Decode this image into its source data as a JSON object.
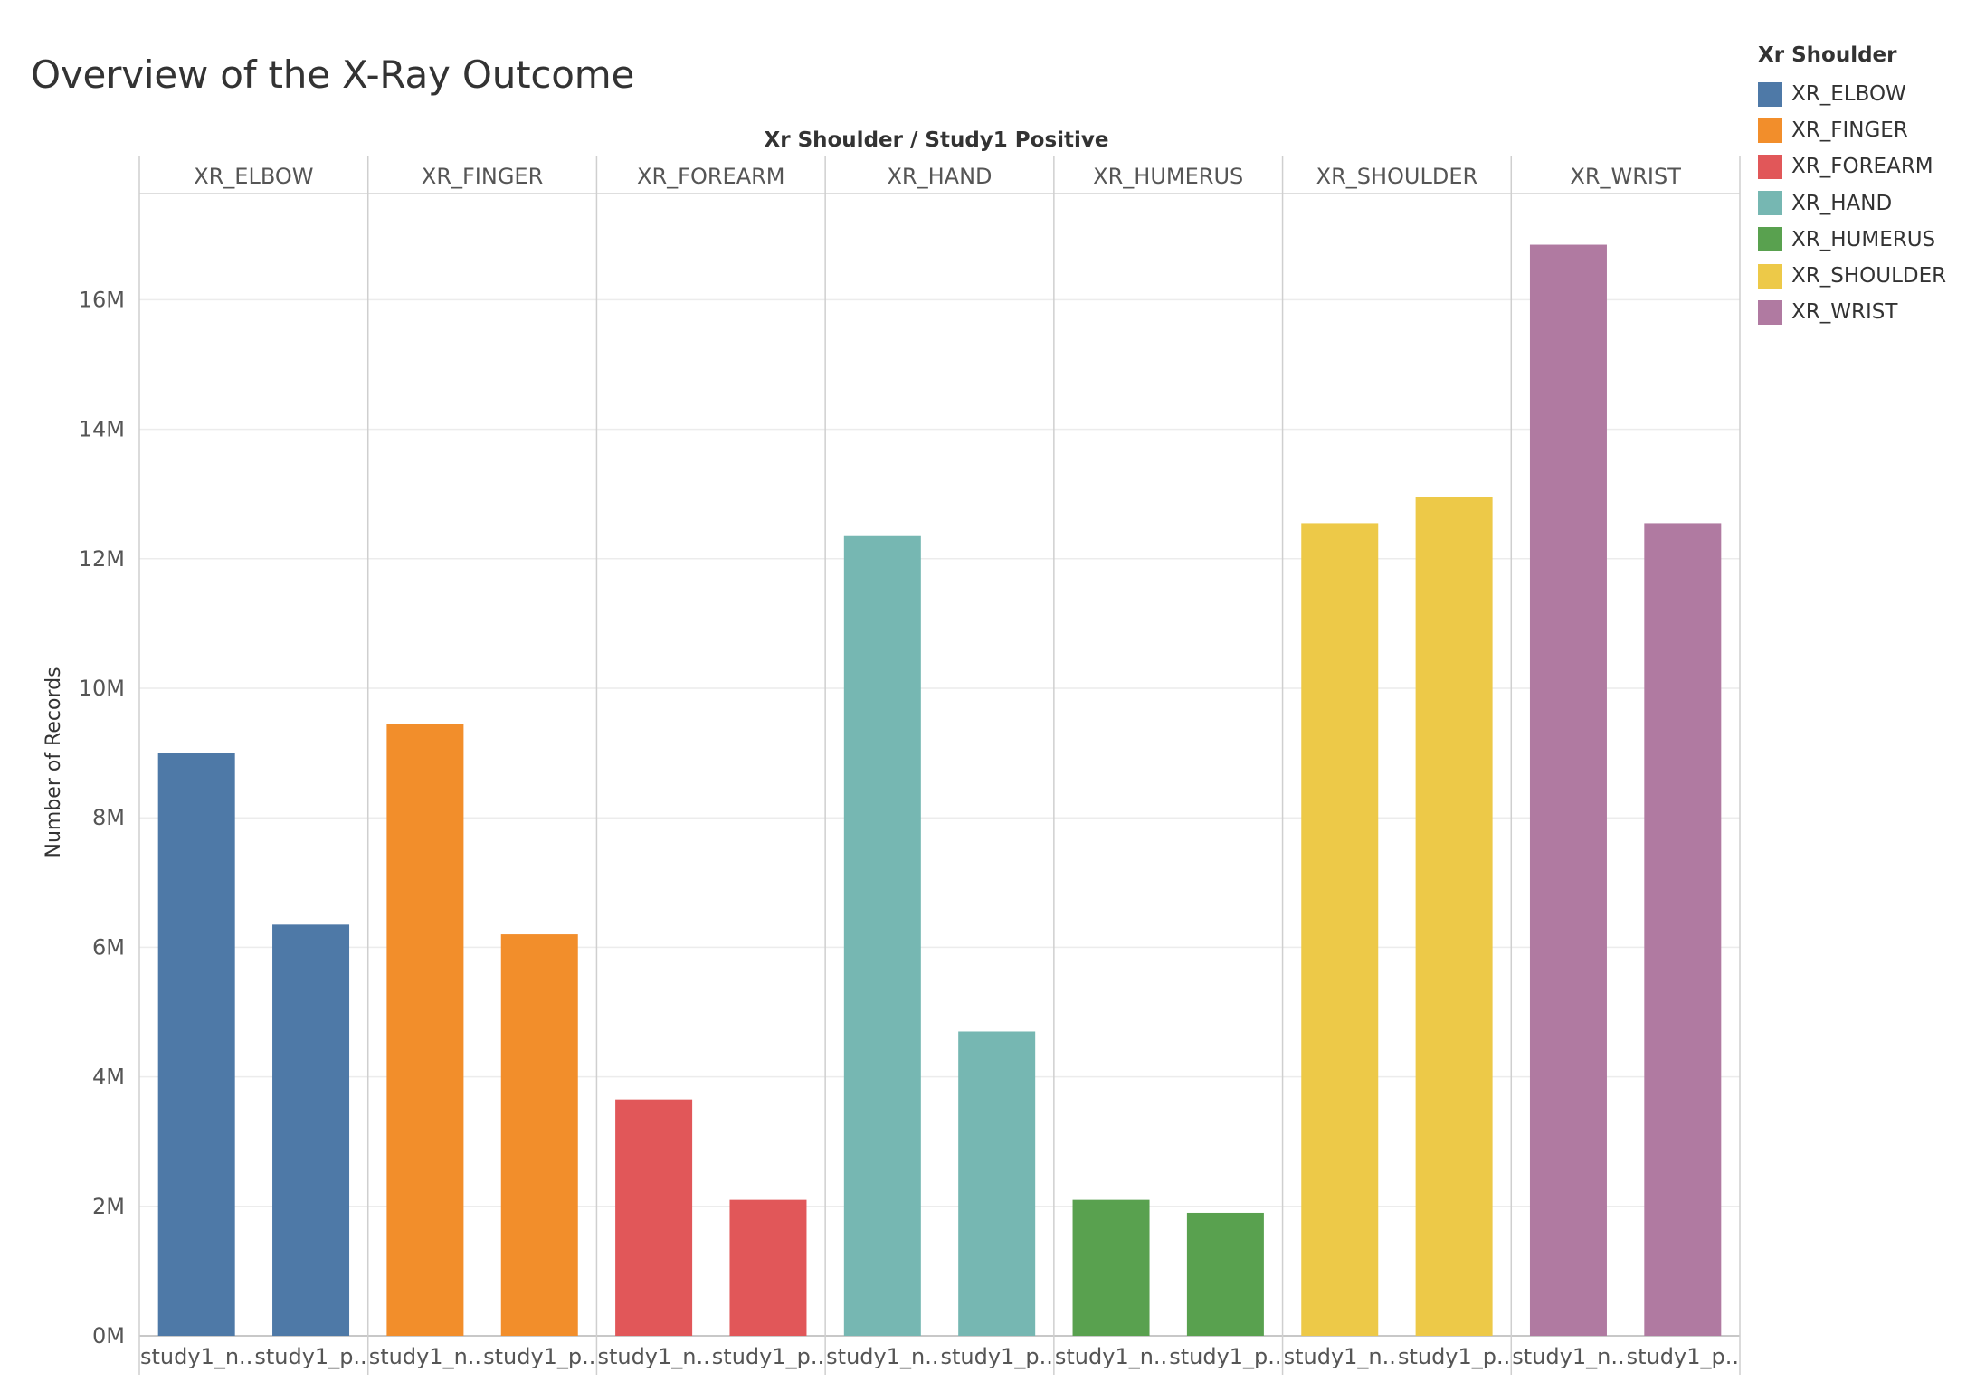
{
  "title": "Overview of the X-Ray Outcome",
  "legend": {
    "title": "Xr Shoulder",
    "items": [
      {
        "label": "XR_ELBOW",
        "color": "#4e79a7"
      },
      {
        "label": "XR_FINGER",
        "color": "#f28e2b"
      },
      {
        "label": "XR_FOREARM",
        "color": "#e15759"
      },
      {
        "label": "XR_HAND",
        "color": "#76b7b2"
      },
      {
        "label": "XR_HUMERUS",
        "color": "#59a14f"
      },
      {
        "label": "XR_SHOULDER",
        "color": "#edc948"
      },
      {
        "label": "XR_WRIST",
        "color": "#b07aa1"
      }
    ]
  },
  "chart_data": {
    "type": "bar",
    "title": "Overview of the X-Ray Outcome",
    "header_label": "Xr Shoulder  /  Study1 Positive",
    "ylabel": "Number of Records",
    "ylim": [
      0,
      17.5
    ],
    "y_ticks": [
      {
        "value": 0,
        "label": "0M"
      },
      {
        "value": 2,
        "label": "2M"
      },
      {
        "value": 4,
        "label": "4M"
      },
      {
        "value": 6,
        "label": "6M"
      },
      {
        "value": 8,
        "label": "8M"
      },
      {
        "value": 10,
        "label": "10M"
      },
      {
        "value": 12,
        "label": "12M"
      },
      {
        "value": 14,
        "label": "14M"
      },
      {
        "value": 16,
        "label": "16M"
      }
    ],
    "grid": true,
    "legend_position": "top-right",
    "sub_categories": [
      "study1_n..",
      "study1_p.."
    ],
    "panels": [
      {
        "name": "XR_ELBOW",
        "color": "#4e79a7",
        "values": [
          9.0,
          6.35
        ]
      },
      {
        "name": "XR_FINGER",
        "color": "#f28e2b",
        "values": [
          9.45,
          6.2
        ]
      },
      {
        "name": "XR_FOREARM",
        "color": "#e15759",
        "values": [
          3.65,
          2.1
        ]
      },
      {
        "name": "XR_HAND",
        "color": "#76b7b2",
        "values": [
          12.35,
          4.7
        ]
      },
      {
        "name": "XR_HUMERUS",
        "color": "#59a14f",
        "values": [
          2.1,
          1.9
        ]
      },
      {
        "name": "XR_SHOULDER",
        "color": "#edc948",
        "values": [
          12.55,
          12.95
        ]
      },
      {
        "name": "XR_WRIST",
        "color": "#b07aa1",
        "values": [
          16.85,
          12.55
        ]
      }
    ]
  }
}
